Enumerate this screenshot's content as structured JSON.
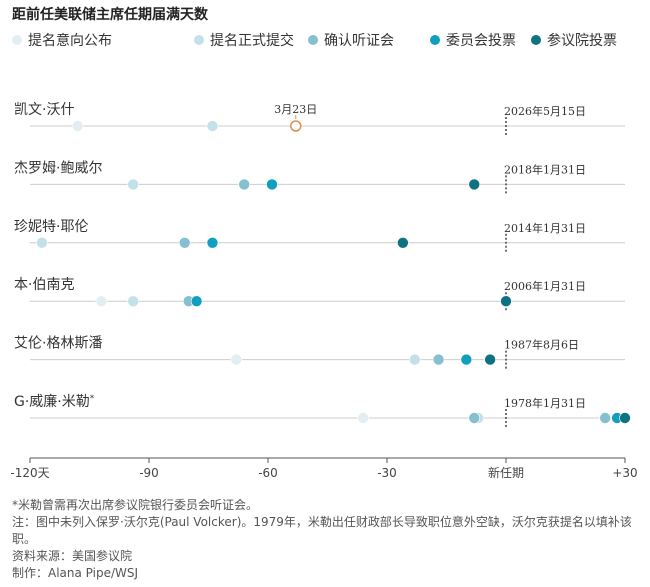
{
  "title": "距前任美联储主席任期届满天数",
  "chart_data": {
    "type": "scatter",
    "title": "距前任美联储主席任期届满天数",
    "xlabel": "",
    "ylabel": "",
    "xlim": [
      -120,
      30
    ],
    "x_ticks": [
      {
        "value": -120,
        "label": "-120天"
      },
      {
        "value": -90,
        "label": "-90"
      },
      {
        "value": -60,
        "label": "-60"
      },
      {
        "value": -30,
        "label": "-30"
      },
      {
        "value": 0,
        "label": "新任期"
      },
      {
        "value": 30,
        "label": "+30"
      }
    ],
    "series_legend": [
      {
        "key": "nominate_intent",
        "name": "提名意向公布",
        "color": "#e3eef3"
      },
      {
        "key": "formal_nomination",
        "name": "提名正式提交",
        "color": "#c4e0e8"
      },
      {
        "key": "confirm_hearing",
        "name": "确认听证会",
        "color": "#85bfd0"
      },
      {
        "key": "committee_vote",
        "name": "委员会投票",
        "color": "#129ebd"
      },
      {
        "key": "senate_vote",
        "name": "参议院投票",
        "color": "#0d7383"
      }
    ],
    "rows": [
      {
        "name": "凯文·沃什",
        "term_date": "2026年5月15日",
        "events": [
          {
            "series": "nominate_intent",
            "x": -108
          },
          {
            "series": "formal_nomination",
            "x": -74
          }
        ],
        "annotation": {
          "label": "3月23日",
          "x": -53,
          "color": "#e0904a"
        }
      },
      {
        "name": "杰罗姆·鲍威尔",
        "term_date": "2018年1月31日",
        "events": [
          {
            "series": "formal_nomination",
            "x": -94
          },
          {
            "series": "confirm_hearing",
            "x": -66
          },
          {
            "series": "committee_vote",
            "x": -59
          },
          {
            "series": "senate_vote",
            "x": -8
          }
        ]
      },
      {
        "name": "珍妮特·耶伦",
        "term_date": "2014年1月31日",
        "events": [
          {
            "series": "formal_nomination",
            "x": -117
          },
          {
            "series": "confirm_hearing",
            "x": -81
          },
          {
            "series": "committee_vote",
            "x": -74
          },
          {
            "series": "senate_vote",
            "x": -26
          }
        ]
      },
      {
        "name": "本·伯南克",
        "term_date": "2006年1月31日",
        "events": [
          {
            "series": "nominate_intent",
            "x": -102
          },
          {
            "series": "formal_nomination",
            "x": -94
          },
          {
            "series": "confirm_hearing",
            "x": -80
          },
          {
            "series": "committee_vote",
            "x": -78
          },
          {
            "series": "senate_vote",
            "x": 0
          }
        ]
      },
      {
        "name": "艾伦·格林斯潘",
        "term_date": "1987年8月6日",
        "events": [
          {
            "series": "nominate_intent",
            "x": -68
          },
          {
            "series": "formal_nomination",
            "x": -23
          },
          {
            "series": "confirm_hearing",
            "x": -17
          },
          {
            "series": "committee_vote",
            "x": -10
          },
          {
            "series": "senate_vote",
            "x": -4
          }
        ]
      },
      {
        "name": "G·威廉·米勒",
        "name_mark": "*",
        "term_date": "1978年1月31日",
        "events": [
          {
            "series": "nominate_intent",
            "x": -36
          },
          {
            "series": "formal_nomination",
            "x": -7
          },
          {
            "series": "confirm_hearing",
            "x": -8
          },
          {
            "series": "confirm_hearing",
            "x": 25
          },
          {
            "series": "committee_vote",
            "x": 28
          },
          {
            "series": "senate_vote",
            "x": 30
          }
        ]
      }
    ]
  },
  "colors": {
    "baseline": "#cccccc",
    "axis": "#555555",
    "term_marker": "#444444"
  },
  "notes": {
    "footnote": "*米勒曾需再次出席参议院银行委员会听证会。",
    "note": "注：图中未列入保罗·沃尔克(Paul Volcker)。1979年，米勒出任财政部长导致职位意外空缺，沃尔克获提名以填补该职。",
    "source": "资料来源：美国参议院",
    "credit": "制作：Alana Pipe/WSJ"
  }
}
